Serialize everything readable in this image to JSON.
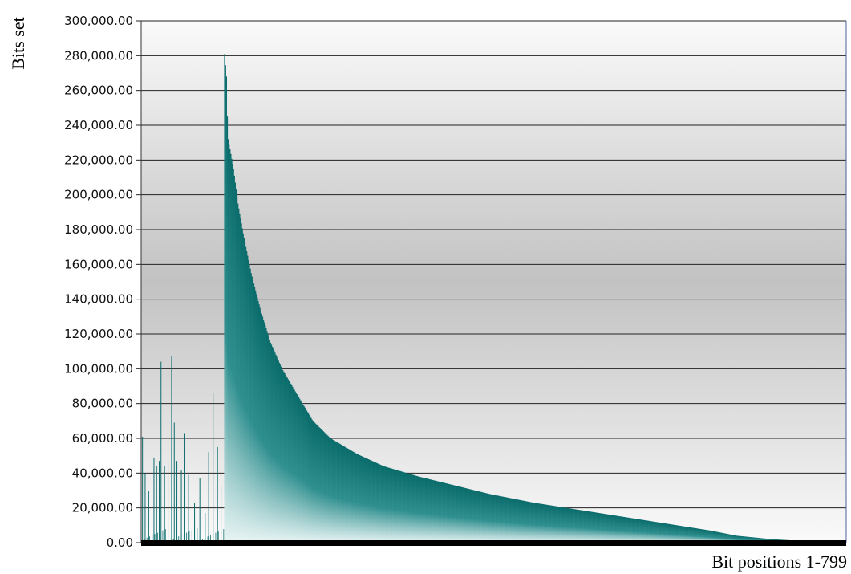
{
  "chart_data": {
    "type": "bar",
    "ylabel": "Bits set",
    "xlabel": "Bit positions 1-799",
    "ylim": [
      0,
      300000
    ],
    "ytick_labels": [
      "0.00",
      "20,000.00",
      "40,000.00",
      "60,000.00",
      "80,000.00",
      "100,000.00",
      "120,000.00",
      "140,000.00",
      "160,000.00",
      "180,000.00",
      "200,000.00",
      "220,000.00",
      "240,000.00",
      "260,000.00",
      "280,000.00",
      "300,000.00"
    ],
    "grid": true,
    "colors": {
      "bar": "#0a6b6b",
      "bar_fade": "#ffffff",
      "bg_edge": "#fafafa",
      "bg_mid": "#c2c2c2",
      "baseline": "#000000"
    },
    "bit_count": 799,
    "peak_position": 94,
    "decay_profile": [
      [
        0,
        281000
      ],
      [
        2,
        268000
      ],
      [
        3,
        245000
      ],
      [
        4,
        232000
      ],
      [
        10,
        215000
      ],
      [
        15,
        195000
      ],
      [
        22,
        175000
      ],
      [
        30,
        155000
      ],
      [
        40,
        135000
      ],
      [
        52,
        115000
      ],
      [
        65,
        100000
      ],
      [
        80,
        87000
      ],
      [
        100,
        70000
      ],
      [
        120,
        60000
      ],
      [
        150,
        51000
      ],
      [
        180,
        44000
      ],
      [
        220,
        38000
      ],
      [
        260,
        33000
      ],
      [
        300,
        28000
      ],
      [
        350,
        23000
      ],
      [
        400,
        19000
      ],
      [
        450,
        15000
      ],
      [
        500,
        11000
      ],
      [
        550,
        7000
      ],
      [
        580,
        4000
      ],
      [
        620,
        2000
      ],
      [
        660,
        800
      ],
      [
        705,
        0
      ]
    ],
    "low_region_spikes": [
      {
        "position": 1,
        "value": 61000
      },
      {
        "position": 4,
        "value": 40000
      },
      {
        "position": 8,
        "value": 30000
      },
      {
        "position": 14,
        "value": 49000
      },
      {
        "position": 17,
        "value": 44000
      },
      {
        "position": 20,
        "value": 47000
      },
      {
        "position": 22,
        "value": 104000
      },
      {
        "position": 26,
        "value": 44000
      },
      {
        "position": 30,
        "value": 46000
      },
      {
        "position": 34,
        "value": 107000
      },
      {
        "position": 37,
        "value": 69000
      },
      {
        "position": 40,
        "value": 47000
      },
      {
        "position": 45,
        "value": 42000
      },
      {
        "position": 49,
        "value": 63000
      },
      {
        "position": 53,
        "value": 39000
      },
      {
        "position": 60,
        "value": 23000
      },
      {
        "position": 66,
        "value": 37000
      },
      {
        "position": 72,
        "value": 17000
      },
      {
        "position": 76,
        "value": 52000
      },
      {
        "position": 81,
        "value": 86000
      },
      {
        "position": 86,
        "value": 55000
      },
      {
        "position": 90,
        "value": 33000
      }
    ]
  }
}
